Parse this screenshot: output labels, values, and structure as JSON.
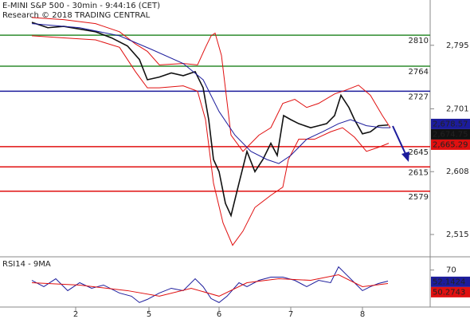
{
  "chart_data": [
    {
      "type": "line",
      "title": "E-MINI S&P 500 - 30min - 9:44:16 (CET)",
      "subtitle": "Research © 2018 TRADING CENTRAL",
      "xlim": [
        0,
        540
      ],
      "xticks": [
        {
          "value": 95,
          "label": "2"
        },
        {
          "value": 187,
          "label": "5"
        },
        {
          "value": 275,
          "label": "6"
        },
        {
          "value": 365,
          "label": "7"
        },
        {
          "value": 455,
          "label": "8"
        }
      ],
      "ylim": [
        2482,
        2862
      ],
      "yticks": [
        {
          "value": 2515,
          "label": "2,515"
        },
        {
          "value": 2608,
          "label": "2,608"
        },
        {
          "value": 2701,
          "label": "2,701"
        },
        {
          "value": 2795,
          "label": "2,795"
        }
      ],
      "levels": [
        {
          "value": 2810,
          "color": "#2e8b2e"
        },
        {
          "value": 2764,
          "color": "#2e8b2e"
        },
        {
          "value": 2727,
          "color": "#1c1c9c"
        },
        {
          "value": 2645,
          "color": "#e01010"
        },
        {
          "value": 2615,
          "color": "#e01010"
        },
        {
          "value": 2579,
          "color": "#e01010"
        }
      ],
      "price_labels": [
        {
          "value": 2678.57,
          "label": "2,678.57",
          "color": "#1c1c9c"
        },
        {
          "value": 2674.75,
          "label": "2,674.75",
          "color": "#111111"
        },
        {
          "value": 2665.29,
          "label": "2,665.29",
          "color": "#e01010"
        }
      ],
      "series": [
        {
          "color": "#111111",
          "x": [
            40,
            60,
            80,
            100,
            120,
            140,
            160,
            175,
            185,
            200,
            215,
            230,
            245,
            255,
            262,
            268,
            275,
            283,
            290,
            300,
            310,
            320,
            330,
            340,
            348,
            356,
            365,
            375,
            390,
            400,
            410,
            420,
            428,
            438,
            445,
            455,
            465,
            475,
            487
          ],
          "values": [
            2829,
            2821,
            2823,
            2819,
            2815,
            2806,
            2794,
            2774,
            2744,
            2748,
            2754,
            2750,
            2756,
            2732,
            2685,
            2626,
            2608,
            2561,
            2543,
            2591,
            2638,
            2608,
            2626,
            2650,
            2632,
            2691,
            2685,
            2679,
            2673,
            2676,
            2679,
            2691,
            2721,
            2703,
            2685,
            2664,
            2667,
            2676,
            2677
          ]
        },
        {
          "color": "#e01010",
          "x": [
            40,
            80,
            120,
            150,
            170,
            185,
            200,
            230,
            248,
            258,
            265,
            270,
            278,
            290,
            305,
            325,
            340,
            355,
            370,
            385,
            400,
            420,
            435,
            450,
            465,
            480,
            490
          ],
          "values": [
            2836,
            2833,
            2827,
            2815,
            2797,
            2786,
            2766,
            2768,
            2766,
            2792,
            2809,
            2813,
            2780,
            2662,
            2638,
            2662,
            2673,
            2709,
            2715,
            2703,
            2709,
            2723,
            2729,
            2736,
            2721,
            2691,
            2673
          ]
        },
        {
          "color": "#e01010",
          "x": [
            40,
            80,
            120,
            150,
            170,
            185,
            200,
            230,
            248,
            258,
            268,
            280,
            292,
            305,
            320,
            340,
            355,
            362,
            375,
            395,
            415,
            430,
            445,
            460,
            475,
            488
          ],
          "values": [
            2809,
            2806,
            2803,
            2792,
            2756,
            2732,
            2732,
            2735,
            2727,
            2685,
            2591,
            2532,
            2499,
            2520,
            2555,
            2573,
            2585,
            2626,
            2656,
            2656,
            2667,
            2673,
            2659,
            2638,
            2644,
            2650
          ]
        },
        {
          "color": "#1c1c9c",
          "x": [
            40,
            100,
            150,
            190,
            230,
            255,
            275,
            295,
            315,
            335,
            350,
            365,
            385,
            405,
            425,
            440,
            460,
            480,
            490
          ],
          "values": [
            2827,
            2821,
            2809,
            2789,
            2768,
            2744,
            2697,
            2662,
            2638,
            2626,
            2620,
            2632,
            2656,
            2667,
            2679,
            2685,
            2676,
            2673,
            2673
          ]
        }
      ]
    },
    {
      "type": "line",
      "title": "RSI14 - 9MA",
      "xlim": [
        0,
        540
      ],
      "ylim": [
        14,
        90
      ],
      "yticks": [
        70
      ],
      "value_labels": [
        {
          "value": 52.1424,
          "label": "52.1424",
          "color": "#1c1c9c"
        },
        {
          "value": 50.2743,
          "label": "50.2743",
          "color": "#e01010"
        }
      ],
      "series": [
        {
          "color": "#1c1c9c",
          "x": [
            40,
            55,
            70,
            85,
            100,
            115,
            130,
            150,
            165,
            175,
            185,
            200,
            215,
            230,
            245,
            255,
            265,
            275,
            285,
            300,
            310,
            325,
            340,
            355,
            370,
            385,
            400,
            415,
            425,
            435,
            445,
            455,
            465,
            475,
            487
          ],
          "values": [
            54.4,
            44.8,
            56.8,
            38.8,
            50.8,
            42.4,
            47.2,
            35.2,
            30.4,
            20.8,
            25.6,
            35.2,
            42.4,
            38.8,
            56.8,
            44.8,
            26.8,
            20.8,
            30.4,
            50.8,
            44.8,
            54.4,
            59.2,
            59.2,
            54.4,
            44.8,
            54.4,
            50.8,
            74.8,
            62.8,
            50.8,
            38.8,
            44.8,
            49.6,
            53.2
          ]
        },
        {
          "color": "#e01010",
          "x": [
            40,
            100,
            160,
            200,
            240,
            275,
            310,
            350,
            390,
            425,
            455,
            487
          ],
          "values": [
            50.8,
            47.2,
            38.8,
            30.4,
            42.4,
            30.4,
            50.8,
            56.8,
            54.4,
            62.8,
            44.8,
            49.6
          ]
        }
      ]
    }
  ]
}
